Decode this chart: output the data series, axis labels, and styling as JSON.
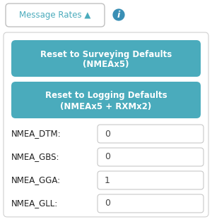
{
  "bg_color": "#ffffff",
  "panel_bg": "#ffffff",
  "panel_border": "#d0d0d0",
  "teal_btn_color": "#4AABBC",
  "teal_btn_text": "#ffffff",
  "header_btn_bg": "#ffffff",
  "header_btn_border": "#c0c0c0",
  "header_btn_text": "#4AABBC",
  "info_icon_color": "#3a8fb5",
  "label_color": "#222222",
  "field_bg": "#ffffff",
  "field_border": "#c8c8c8",
  "field_text": "#444444",
  "header_label": "Message Rates ▲",
  "btn1_line1": "Reset to Surveying Defaults",
  "btn1_line2": "(NMEAx5)",
  "btn2_line1": "Reset to Logging Defaults",
  "btn2_line2": "(NMEAx5 + RXMx2)",
  "rows": [
    {
      "label": "NMEA_DTM:",
      "value": "0"
    },
    {
      "label": "NMEA_GBS:",
      "value": "0"
    },
    {
      "label": "NMEA_GGA:",
      "value": "1"
    },
    {
      "label": "NMEA_GLL:",
      "value": "0"
    }
  ]
}
